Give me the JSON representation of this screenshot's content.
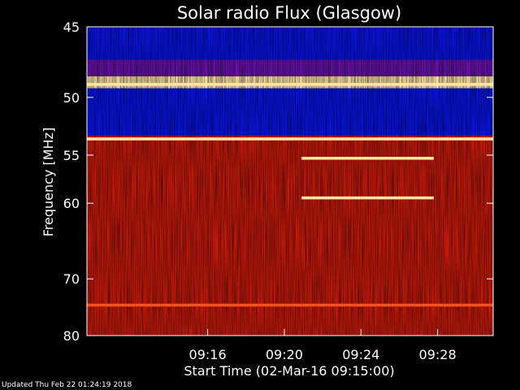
{
  "chart_data": {
    "type": "heatmap",
    "title": "Solar radio Flux (Glasgow)",
    "xlabel": "Start Time (02-Mar-16 09:15:00)",
    "ylabel": "Frequency [MHz]",
    "x_range_minutes": [
      9.7,
      30.9
    ],
    "y_range_mhz": [
      45,
      80
    ],
    "x_ticks": [
      {
        "label": "09:16",
        "minute": 16
      },
      {
        "label": "09:20",
        "minute": 20
      },
      {
        "label": "09:24",
        "minute": 24
      },
      {
        "label": "09:28",
        "minute": 28
      }
    ],
    "y_ticks": [
      {
        "label": "45",
        "value": 45
      },
      {
        "label": "50",
        "value": 50
      },
      {
        "label": "55",
        "value": 55
      },
      {
        "label": "60",
        "value": 60
      },
      {
        "label": "70",
        "value": 70
      },
      {
        "label": "80",
        "value": 80
      }
    ],
    "y_scale": "reciprocal",
    "bands": [
      {
        "from": 45,
        "to": 47.2,
        "level": "low"
      },
      {
        "from": 47.2,
        "to": 48.4,
        "level": "medium-low"
      },
      {
        "from": 48.4,
        "to": 49.3,
        "level": "high"
      },
      {
        "from": 49.3,
        "to": 53.2,
        "level": "low"
      },
      {
        "from": 53.2,
        "to": 80,
        "level": "medium"
      }
    ],
    "emission_lines": [
      {
        "freq": 49.0,
        "level": "high"
      },
      {
        "freq": 53.5,
        "level": "high"
      },
      {
        "freq": 55.3,
        "level": "high",
        "start_minute": 20.9,
        "end_minute": 27.8
      },
      {
        "freq": 59.4,
        "level": "high",
        "start_minute": 20.9,
        "end_minute": 27.8
      },
      {
        "freq": 74.3,
        "level": "medium-high"
      }
    ],
    "colors": {
      "background": "#000000",
      "low": "#0a14e6",
      "medium": "#c81a0c",
      "high": "#ffe6a0"
    }
  },
  "footer": "Updated Thu Feb 22 01:24:19 2018"
}
